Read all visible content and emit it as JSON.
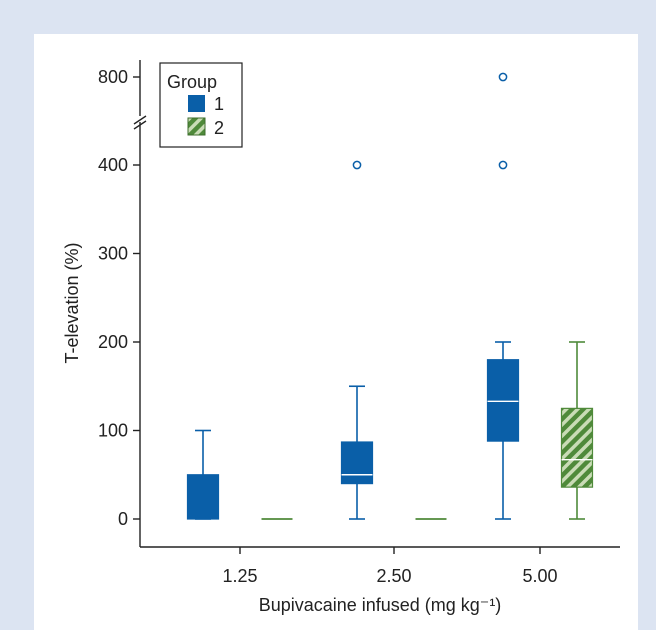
{
  "chart_data": {
    "type": "box",
    "xlabel": "Bupivacaine infused (mg kg⁻¹)",
    "ylabel": "T-elevation (%)",
    "categories": [
      "1.25",
      "2.50",
      "5.00"
    ],
    "yticks": [
      0,
      100,
      200,
      300,
      400,
      800
    ],
    "y_axis_break": [
      400,
      800
    ],
    "legend": {
      "title": "Group",
      "position": "top-left",
      "entries": [
        "1",
        "2"
      ]
    },
    "colors": {
      "group1": "#0a5fa8",
      "group2": "#4f8a3a"
    },
    "series": [
      {
        "name": "1",
        "pattern": "solid",
        "boxes": [
          {
            "category": "1.25",
            "min": 0,
            "q1": 0,
            "median": 0,
            "q3": 50,
            "max": 100,
            "outliers": []
          },
          {
            "category": "2.50",
            "min": 0,
            "q1": 40,
            "median": 50,
            "q3": 87,
            "max": 150,
            "outliers": [
              400
            ]
          },
          {
            "category": "5.00",
            "min": 0,
            "q1": 88,
            "median": 133,
            "q3": 180,
            "max": 200,
            "outliers": [
              400,
              800
            ]
          }
        ]
      },
      {
        "name": "2",
        "pattern": "hatched",
        "boxes": [
          {
            "category": "1.25",
            "min": 0,
            "q1": 0,
            "median": 0,
            "q3": 0,
            "max": 0,
            "outliers": []
          },
          {
            "category": "2.50",
            "min": 0,
            "q1": 0,
            "median": 0,
            "q3": 0,
            "max": 0,
            "outliers": []
          },
          {
            "category": "5.00",
            "min": 0,
            "q1": 36,
            "median": 67,
            "q3": 125,
            "max": 200,
            "outliers": []
          }
        ]
      }
    ]
  }
}
